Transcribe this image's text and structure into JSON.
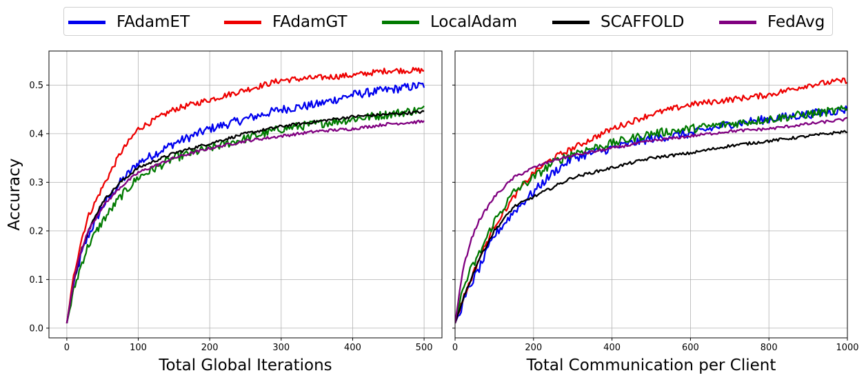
{
  "chart_data": [
    {
      "type": "line",
      "title": "",
      "xlabel": "Total Global Iterations",
      "ylabel": "Accuracy",
      "xlim": [
        -25,
        525
      ],
      "ylim": [
        -0.02,
        0.57
      ],
      "xticks": [
        0,
        100,
        200,
        300,
        400,
        500
      ],
      "yticks": [
        0.0,
        0.1,
        0.2,
        0.3,
        0.4,
        0.5
      ],
      "grid": true,
      "series": [
        {
          "name": "FAdamET",
          "color": "#0000ee",
          "x": [
            0,
            10,
            20,
            30,
            50,
            75,
            100,
            150,
            200,
            250,
            300,
            350,
            400,
            450,
            500
          ],
          "y": [
            0.01,
            0.09,
            0.15,
            0.19,
            0.25,
            0.3,
            0.34,
            0.38,
            0.41,
            0.43,
            0.45,
            0.46,
            0.48,
            0.49,
            0.5
          ]
        },
        {
          "name": "FAdamGT",
          "color": "#ee0000",
          "x": [
            0,
            10,
            20,
            30,
            50,
            75,
            100,
            150,
            200,
            250,
            300,
            350,
            400,
            450,
            500
          ],
          "y": [
            0.01,
            0.11,
            0.18,
            0.23,
            0.29,
            0.36,
            0.41,
            0.45,
            0.47,
            0.49,
            0.51,
            0.515,
            0.52,
            0.53,
            0.53
          ]
        },
        {
          "name": "LocalAdam",
          "color": "#007a00",
          "x": [
            0,
            10,
            20,
            30,
            50,
            75,
            100,
            150,
            200,
            250,
            300,
            350,
            400,
            450,
            500
          ],
          "y": [
            0.01,
            0.08,
            0.13,
            0.17,
            0.22,
            0.27,
            0.31,
            0.35,
            0.37,
            0.39,
            0.41,
            0.42,
            0.43,
            0.44,
            0.45
          ]
        },
        {
          "name": "SCAFFOLD",
          "color": "#000000",
          "x": [
            0,
            10,
            20,
            30,
            50,
            75,
            100,
            150,
            200,
            250,
            300,
            350,
            400,
            450,
            500
          ],
          "y": [
            0.01,
            0.1,
            0.16,
            0.2,
            0.26,
            0.3,
            0.33,
            0.36,
            0.38,
            0.4,
            0.415,
            0.425,
            0.435,
            0.44,
            0.445
          ]
        },
        {
          "name": "FedAvg",
          "color": "#800080",
          "x": [
            0,
            10,
            20,
            30,
            50,
            75,
            100,
            150,
            200,
            250,
            300,
            350,
            400,
            450,
            500
          ],
          "y": [
            0.01,
            0.1,
            0.16,
            0.2,
            0.25,
            0.29,
            0.32,
            0.35,
            0.37,
            0.385,
            0.395,
            0.405,
            0.41,
            0.42,
            0.425
          ]
        }
      ]
    },
    {
      "type": "line",
      "title": "",
      "xlabel": "Total Communication per Client",
      "ylabel": "",
      "xlim": [
        0,
        1000
      ],
      "ylim": [
        -0.02,
        0.57
      ],
      "xticks": [
        0,
        200,
        400,
        600,
        800,
        1000
      ],
      "yticks": [
        0.0,
        0.1,
        0.2,
        0.3,
        0.4,
        0.5
      ],
      "grid": true,
      "series": [
        {
          "name": "FAdamET",
          "color": "#0000ee",
          "x": [
            0,
            20,
            40,
            60,
            100,
            150,
            200,
            250,
            300,
            400,
            500,
            600,
            700,
            800,
            900,
            1000
          ],
          "y": [
            0.01,
            0.05,
            0.09,
            0.12,
            0.19,
            0.24,
            0.28,
            0.32,
            0.35,
            0.37,
            0.39,
            0.4,
            0.42,
            0.43,
            0.44,
            0.45
          ]
        },
        {
          "name": "FAdamGT",
          "color": "#ee0000",
          "x": [
            0,
            20,
            40,
            60,
            100,
            150,
            200,
            250,
            300,
            400,
            500,
            600,
            700,
            800,
            900,
            1000
          ],
          "y": [
            0.01,
            0.06,
            0.1,
            0.14,
            0.21,
            0.27,
            0.32,
            0.35,
            0.37,
            0.41,
            0.44,
            0.46,
            0.47,
            0.48,
            0.5,
            0.51
          ]
        },
        {
          "name": "LocalAdam",
          "color": "#007a00",
          "x": [
            0,
            20,
            40,
            60,
            100,
            150,
            200,
            250,
            300,
            400,
            500,
            600,
            700,
            800,
            900,
            1000
          ],
          "y": [
            0.01,
            0.08,
            0.12,
            0.15,
            0.22,
            0.28,
            0.31,
            0.34,
            0.36,
            0.38,
            0.4,
            0.41,
            0.42,
            0.43,
            0.44,
            0.45
          ]
        },
        {
          "name": "SCAFFOLD",
          "color": "#000000",
          "x": [
            0,
            20,
            40,
            60,
            100,
            150,
            200,
            250,
            300,
            400,
            500,
            600,
            700,
            800,
            900,
            1000
          ],
          "y": [
            0.01,
            0.06,
            0.1,
            0.14,
            0.2,
            0.25,
            0.27,
            0.29,
            0.31,
            0.33,
            0.35,
            0.36,
            0.375,
            0.385,
            0.395,
            0.405
          ]
        },
        {
          "name": "FedAvg",
          "color": "#800080",
          "x": [
            0,
            20,
            40,
            60,
            100,
            150,
            200,
            250,
            300,
            400,
            500,
            600,
            700,
            800,
            900,
            1000
          ],
          "y": [
            0.01,
            0.12,
            0.18,
            0.22,
            0.27,
            0.31,
            0.33,
            0.345,
            0.355,
            0.37,
            0.385,
            0.395,
            0.405,
            0.41,
            0.42,
            0.43
          ]
        }
      ]
    }
  ],
  "legend": {
    "placement": "top",
    "items": [
      {
        "label": "FAdamET",
        "color": "#0000ee"
      },
      {
        "label": "FAdamGT",
        "color": "#ee0000"
      },
      {
        "label": "LocalAdam",
        "color": "#007a00"
      },
      {
        "label": "SCAFFOLD",
        "color": "#000000"
      },
      {
        "label": "FedAvg",
        "color": "#800080"
      }
    ]
  }
}
